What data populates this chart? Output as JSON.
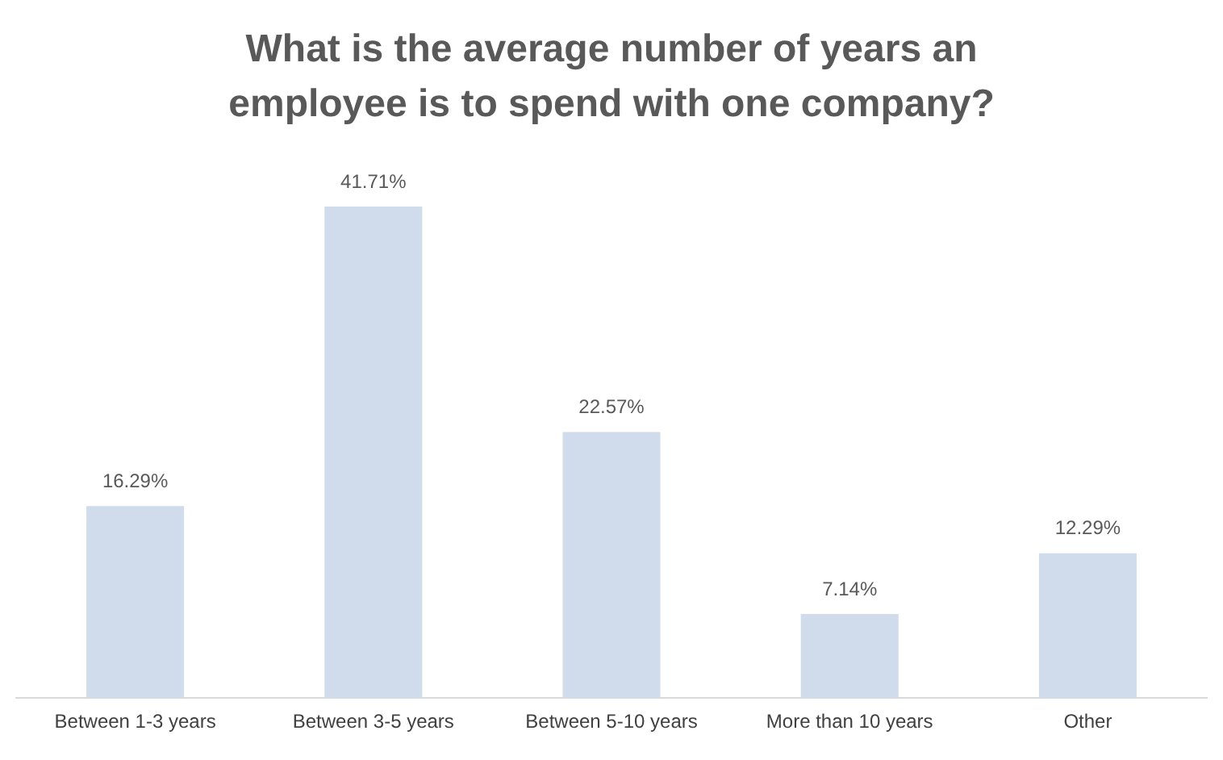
{
  "chart_data": {
    "type": "bar",
    "title": "What is the average number of years an employee is to spend with one company?",
    "categories": [
      "Between 1-3 years",
      "Between 3-5 years",
      "Between 5-10 years",
      "More than 10 years",
      "Other"
    ],
    "values": [
      16.29,
      41.71,
      22.57,
      7.14,
      12.29
    ],
    "value_labels": [
      "16.29%",
      "41.71%",
      "22.57%",
      "7.14%",
      "12.29%"
    ],
    "color": "#d0dceb",
    "tick_labels": "x",
    "grid": false,
    "legend": false
  }
}
